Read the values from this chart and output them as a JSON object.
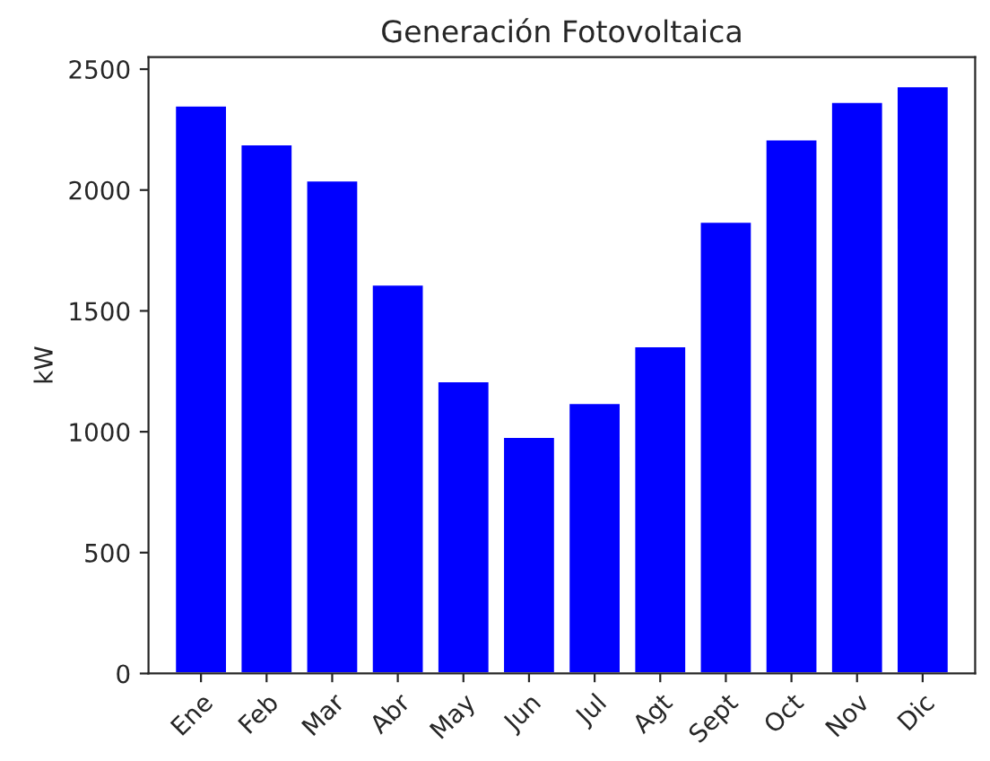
{
  "chart_data": {
    "type": "bar",
    "title": "Generación Fotovoltaica",
    "ylabel": "kW",
    "categories": [
      "Ene",
      "Feb",
      "Mar",
      "Abr",
      "May",
      "Jun",
      "Jul",
      "Agt",
      "Sept",
      "Oct",
      "Nov",
      "Dic"
    ],
    "values": [
      2350,
      2190,
      2040,
      1610,
      1210,
      980,
      1120,
      1355,
      1870,
      2210,
      2365,
      2430
    ],
    "color": "#0000ff",
    "ylim": [
      0,
      2550
    ],
    "yticks": [
      0,
      500,
      1000,
      1500,
      2000,
      2500
    ],
    "grid": false
  }
}
